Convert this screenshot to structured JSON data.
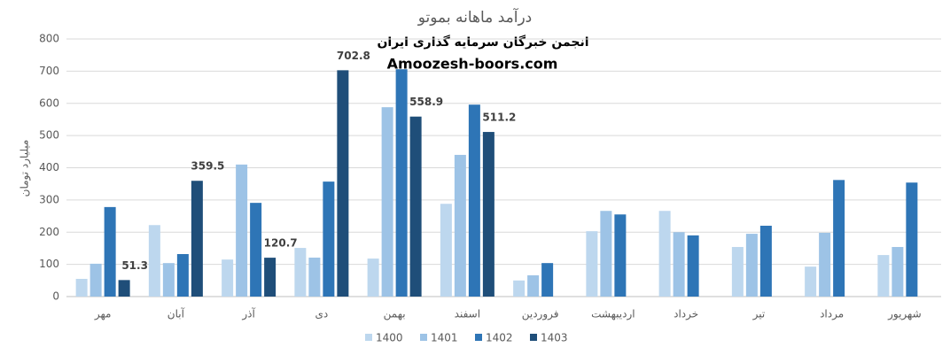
{
  "chart_data": {
    "type": "bar",
    "title": "درآمد ماهانه بموتو",
    "annotations": [
      "انجمن خبرگان سرمایه گذاری ایران",
      "Amoozesh-boors.com"
    ],
    "y_label": "میلیارد تومان",
    "categories": [
      "مهر",
      "آبان",
      "آذر",
      "دی",
      "بهمن",
      "اسفند",
      "فروردین",
      "اردیبهشت",
      "خرداد",
      "تیر",
      "مرداد",
      "شهریور"
    ],
    "series": [
      {
        "name": "1400",
        "color": "#bdd7ee",
        "values": [
          55,
          222,
          115,
          151,
          118,
          288,
          50,
          203,
          266,
          154,
          93,
          129
        ]
      },
      {
        "name": "1401",
        "color": "#9dc3e6",
        "values": [
          102,
          104,
          410,
          121,
          588,
          440,
          66,
          266,
          200,
          195,
          198,
          154
        ]
      },
      {
        "name": "1402",
        "color": "#2e75b6",
        "values": [
          278,
          132,
          291,
          357,
          706,
          596,
          104,
          255,
          190,
          220,
          362,
          354
        ]
      },
      {
        "name": "1403",
        "color": "#1f4e79",
        "values": [
          51.3,
          359.5,
          120.7,
          702.8,
          558.9,
          511.2,
          null,
          null,
          null,
          null,
          null,
          null
        ],
        "data_labels": true
      }
    ],
    "ylim": [
      0,
      800
    ],
    "yticks": [
      0,
      100,
      200,
      300,
      400,
      500,
      600,
      700,
      800
    ],
    "grid": true,
    "legend": "bottom"
  }
}
